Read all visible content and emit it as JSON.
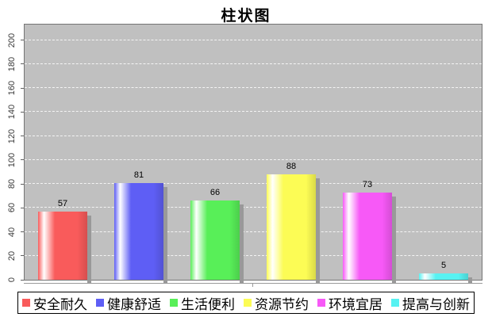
{
  "chart_data": {
    "type": "bar",
    "title": "柱状图",
    "categories": [
      "安全耐久",
      "健康舒适",
      "生活便利",
      "资源节约",
      "环境宜居",
      "提高与创新"
    ],
    "values": [
      57,
      81,
      66,
      88,
      73,
      5
    ],
    "colors": [
      "#f95b5b",
      "#5e5ef5",
      "#58ef58",
      "#fcfc55",
      "#f759f7",
      "#57f2f2"
    ],
    "xlabel": "",
    "ylabel": "",
    "ylim": [
      0,
      213
    ],
    "yticks": [
      0,
      20,
      40,
      60,
      80,
      100,
      120,
      140,
      160,
      180,
      200
    ],
    "grid": "horizontal dashed white",
    "plot_background": "#c0c0c0",
    "legend_position": "bottom"
  }
}
